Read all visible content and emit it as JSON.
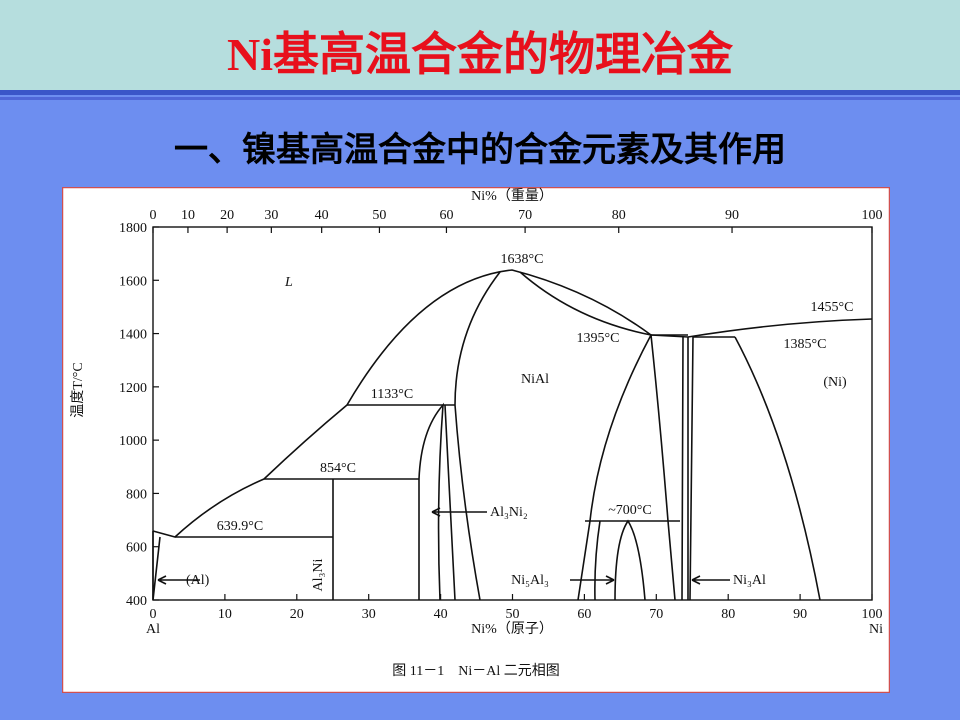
{
  "header": {
    "title": "Ni基高温合金的物理冶金"
  },
  "subtitle": "一、镍基高温合金中的合金元素及其作用",
  "figure": {
    "top_axis_label": "Ni%（重量）",
    "bottom_axis_label": "Ni%（原子）",
    "y_axis_label": "温度T/°C",
    "left_end_label": "Al",
    "right_end_label": "Ni",
    "xlim": [
      0,
      100
    ],
    "ylim": [
      400,
      1800
    ],
    "xticks": [
      0,
      10,
      20,
      30,
      40,
      50,
      60,
      70,
      80,
      90,
      100
    ],
    "top_xticks": [
      0,
      10,
      20,
      30,
      40,
      50,
      60,
      70,
      80,
      90,
      100
    ],
    "yticks": [
      400,
      600,
      800,
      1000,
      1200,
      1400,
      1600,
      1800
    ],
    "annotations": [
      "1638°C",
      "1455°C",
      "1395°C",
      "1385°C",
      "1133°C",
      "854°C",
      "639.9°C",
      "~700°C",
      "L",
      "NiAl",
      "(Ni)",
      "(Al)",
      "Al₃Ni₂",
      "Al₃Ni",
      "Ni₅Al₃",
      "Ni₃Al"
    ],
    "caption": "图 11－1　Ni－Al 二元相图"
  }
}
